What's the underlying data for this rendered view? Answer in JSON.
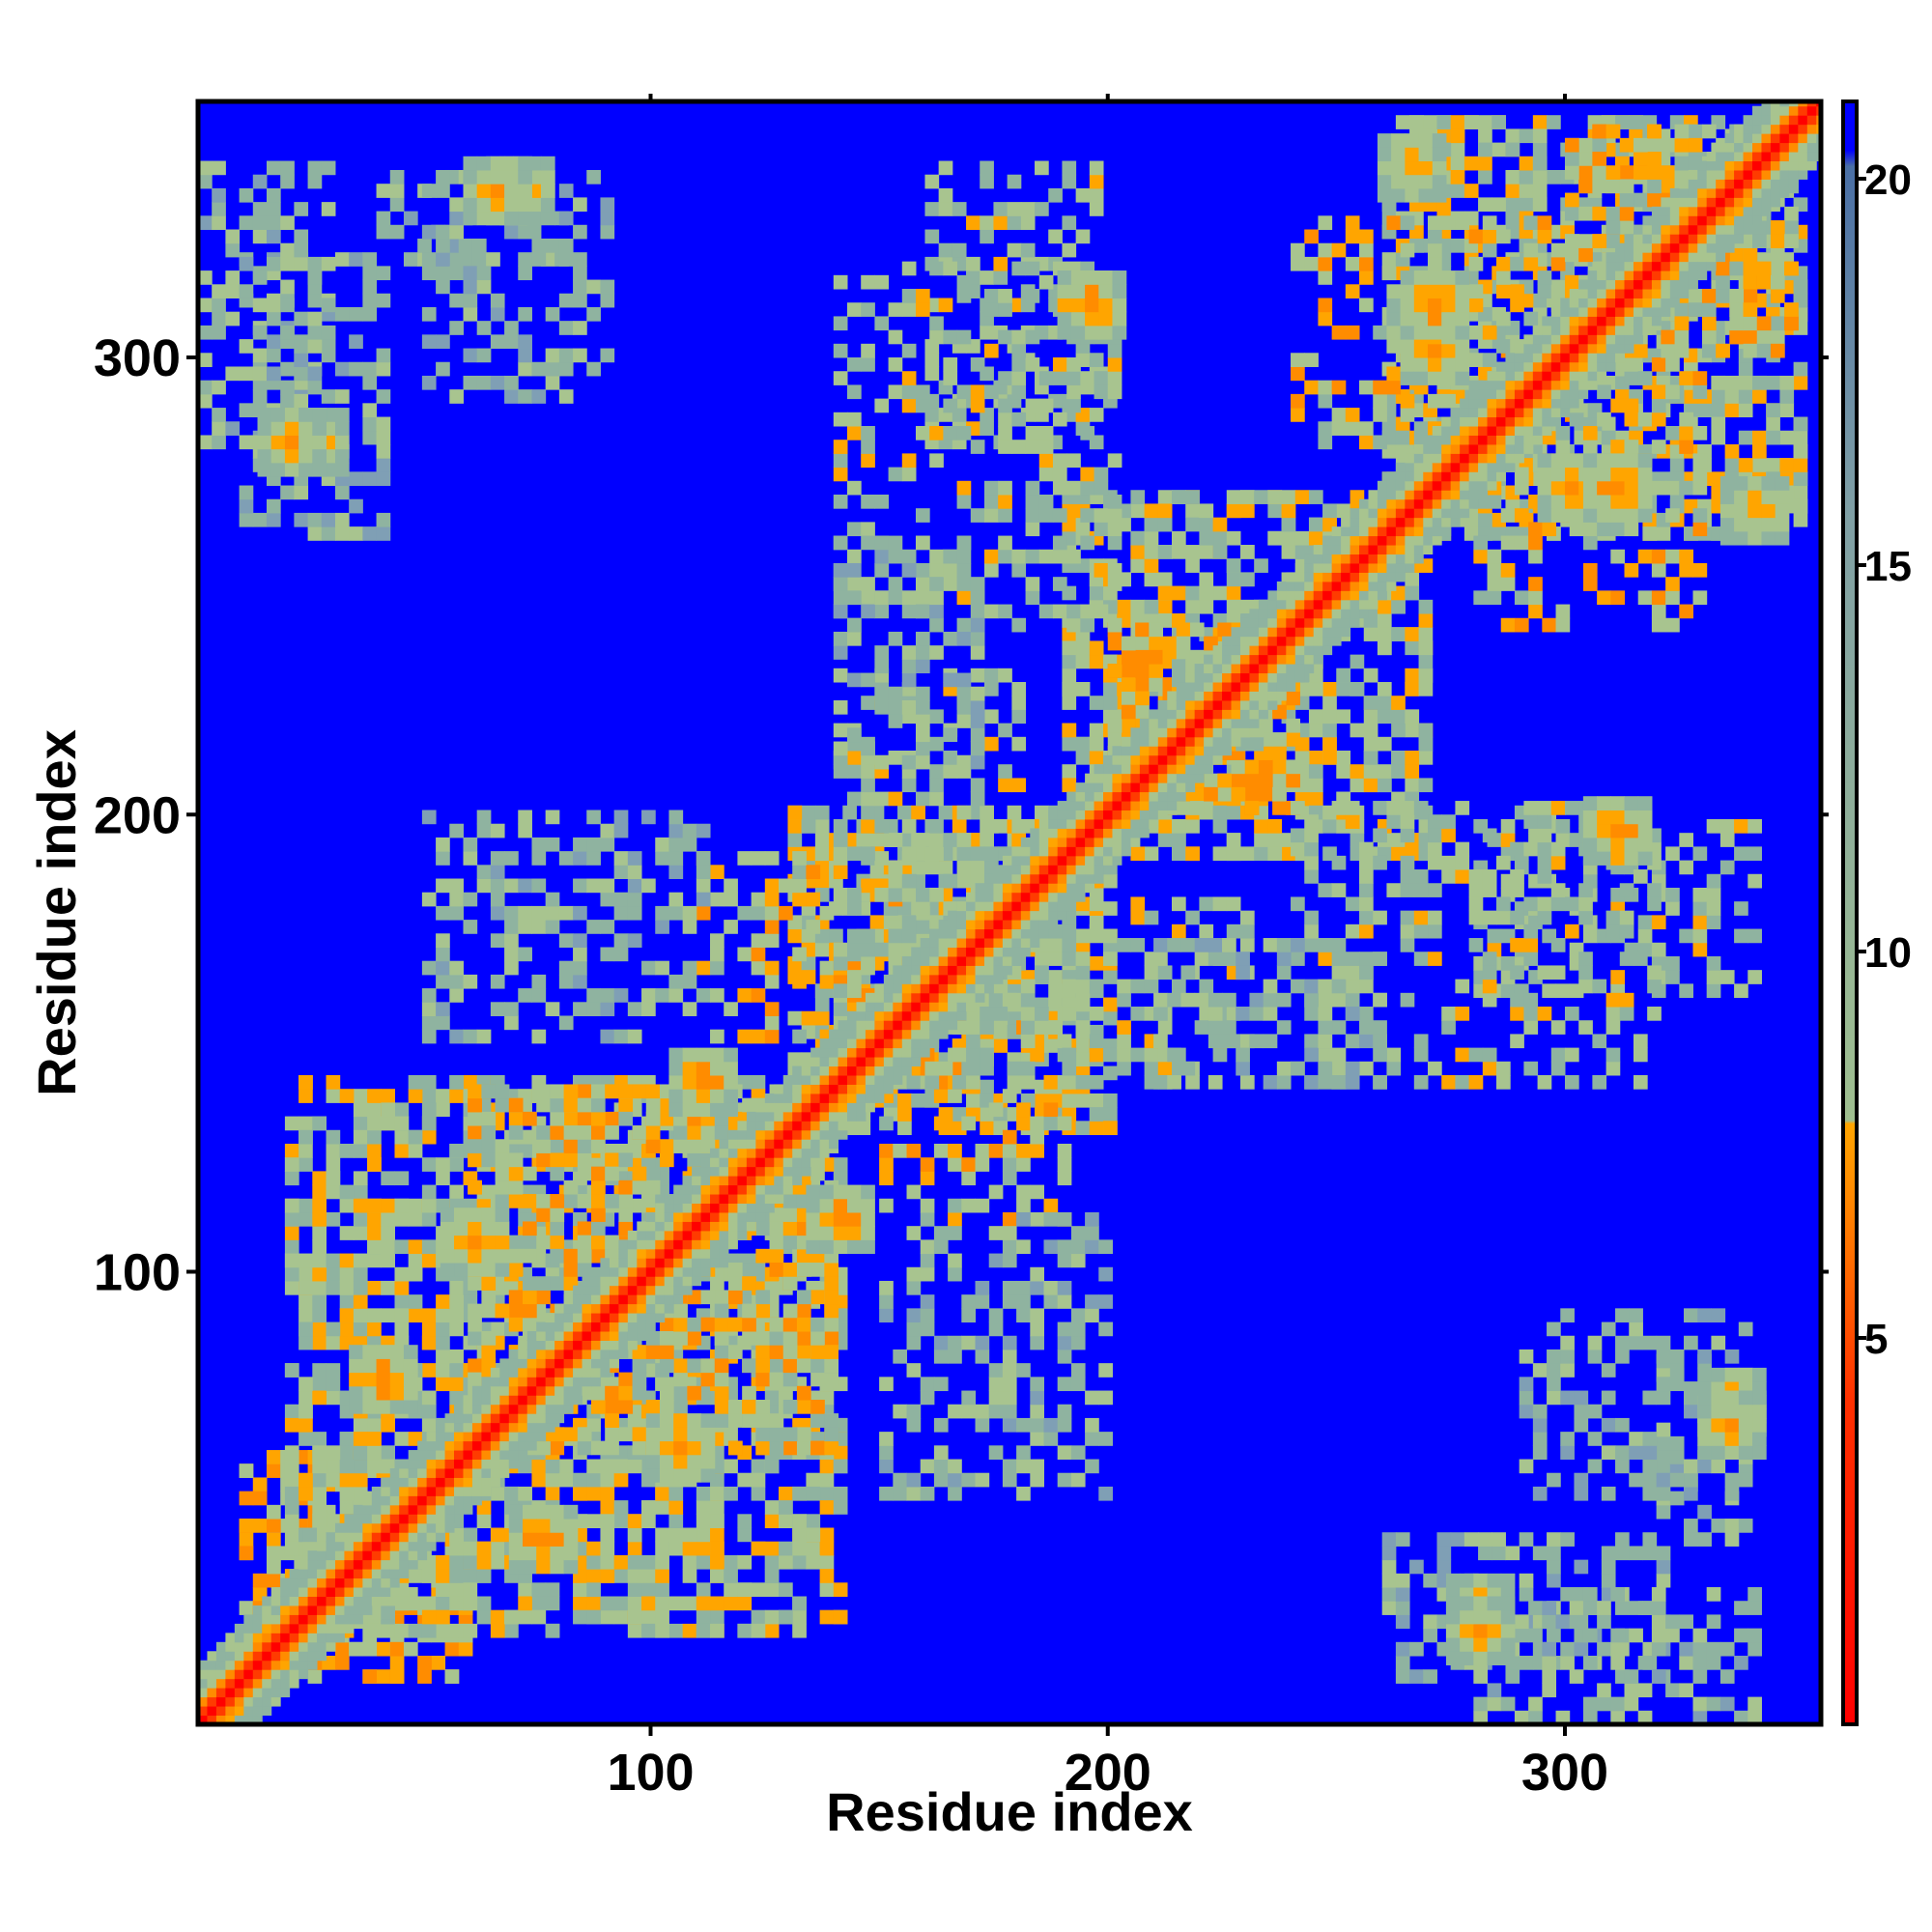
{
  "chart_data": {
    "type": "heatmap",
    "title": "",
    "xlabel": "Residue index",
    "ylabel": "Residue index",
    "xlim": [
      1,
      356
    ],
    "ylim": [
      1,
      356
    ],
    "x_ticks": [
      100,
      200,
      300
    ],
    "y_ticks": [
      100,
      200,
      300
    ],
    "colorbar": {
      "range": [
        0,
        21
      ],
      "ticks": [
        5,
        10,
        15,
        20
      ],
      "colors": {
        "near": "#ff0000",
        "mid_close": "#ff8c00",
        "contact": "#ffa500",
        "moderate": "#9fbf8f",
        "far": "#4a6fa5",
        "background": "#0000ff"
      }
    },
    "matrix": {
      "description_free": true,
      "diagonal_value": 1,
      "background_value": 21,
      "bands": [
        {
          "x": [
            10,
            60
          ],
          "y": [
            10,
            60
          ],
          "value": 8
        },
        {
          "x": [
            20,
            140
          ],
          "y": [
            20,
            140
          ],
          "value": 10
        },
        {
          "x": [
            60,
            140
          ],
          "y": [
            60,
            140
          ],
          "value": 9
        },
        {
          "x": [
            130,
            200
          ],
          "y": [
            130,
            200
          ],
          "value": 10
        },
        {
          "x": [
            150,
            190
          ],
          "y": [
            110,
            160
          ],
          "value": 9
        },
        {
          "x": [
            190,
            270
          ],
          "y": [
            190,
            270
          ],
          "value": 10
        },
        {
          "x": [
            200,
            240
          ],
          "y": [
            200,
            240
          ],
          "value": 8
        },
        {
          "x": [
            260,
            350
          ],
          "y": [
            260,
            350
          ],
          "value": 10
        },
        {
          "x": [
            280,
            330
          ],
          "y": [
            240,
            300
          ],
          "value": 9
        },
        {
          "x": [
            300,
            350
          ],
          "y": [
            300,
            350
          ],
          "value": 9
        },
        {
          "x": [
            160,
            200
          ],
          "y": [
            280,
            340
          ],
          "value": 11
        },
        {
          "x": [
            240,
            320
          ],
          "y": [
            140,
            200
          ],
          "value": 11
        },
        {
          "x": [
            160,
            230
          ],
          "y": [
            140,
            180
          ],
          "value": 11
        },
        {
          "x": [
            150,
            200
          ],
          "y": [
            50,
            110
          ],
          "value": 12
        },
        {
          "x": [
            260,
            320
          ],
          "y": [
            10,
            40
          ],
          "value": 12
        },
        {
          "x": [
            320,
            340
          ],
          "y": [
            40,
            80
          ],
          "value": 12
        },
        {
          "x": [
            1,
            30
          ],
          "y": [
            280,
            340
          ],
          "value": 12
        },
        {
          "x": [
            50,
            90
          ],
          "y": [
            290,
            340
          ],
          "value": 13
        },
        {
          "x": [
            140,
            170
          ],
          "y": [
            210,
            260
          ],
          "value": 12
        }
      ],
      "hotspots": [
        {
          "x": 30,
          "y": 35,
          "value": 4
        },
        {
          "x": 75,
          "y": 40,
          "value": 5
        },
        {
          "x": 60,
          "y": 105,
          "value": 5
        },
        {
          "x": 140,
          "y": 110,
          "value": 5
        },
        {
          "x": 195,
          "y": 310,
          "value": 5
        },
        {
          "x": 270,
          "y": 300,
          "value": 5
        },
        {
          "x": 310,
          "y": 270,
          "value": 5
        },
        {
          "x": 220,
          "y": 225,
          "value": 5
        },
        {
          "x": 310,
          "y": 195,
          "value": 5
        },
        {
          "x": 335,
          "y": 70,
          "value": 6
        },
        {
          "x": 280,
          "y": 25,
          "value": 6
        },
        {
          "x": 65,
          "y": 335,
          "value": 6
        },
        {
          "x": 20,
          "y": 280,
          "value": 6
        },
        {
          "x": 265,
          "y": 340,
          "value": 6
        },
        {
          "x": 330,
          "y": 335,
          "value": 5
        }
      ]
    }
  }
}
